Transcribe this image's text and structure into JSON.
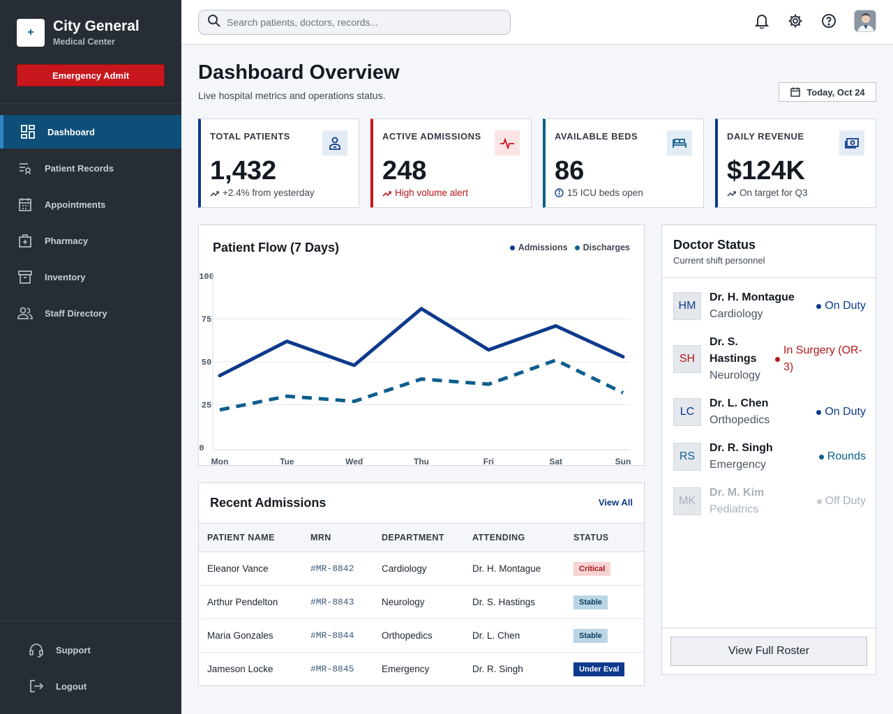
{
  "brand": {
    "name": "City General",
    "sub": "Medical Center",
    "logo_glyph": "+"
  },
  "sidebar": {
    "emergency_label": "Emergency Admit",
    "items": [
      {
        "label": "Dashboard",
        "icon": "dashboard-icon",
        "active": true
      },
      {
        "label": "Patient Records",
        "icon": "records-icon"
      },
      {
        "label": "Appointments",
        "icon": "calendar-icon"
      },
      {
        "label": "Pharmacy",
        "icon": "medical-bag-icon"
      },
      {
        "label": "Inventory",
        "icon": "archive-icon"
      },
      {
        "label": "Staff Directory",
        "icon": "staff-icon"
      }
    ],
    "bottom": [
      {
        "label": "Support",
        "icon": "headset-icon"
      },
      {
        "label": "Logout",
        "icon": "logout-icon"
      }
    ]
  },
  "topbar": {
    "search_placeholder": "Search patients, doctors, records...",
    "search_value": ""
  },
  "header": {
    "title": "Dashboard Overview",
    "subtitle": "Live hospital metrics and operations status.",
    "date_label": "Today, Oct 24"
  },
  "kpis": [
    {
      "label": "TOTAL PATIENTS",
      "value": "1,432",
      "note": "+2.4% from yesterday",
      "icon": "patient-icon"
    },
    {
      "label": "ACTIVE ADMISSIONS",
      "value": "248",
      "note": "High volume alert",
      "icon": "pulse-icon"
    },
    {
      "label": "AVAILABLE BEDS",
      "value": "86",
      "note": "15 ICU beds open",
      "icon": "bed-icon"
    },
    {
      "label": "DAILY REVENUE",
      "value": "$124K",
      "note": "On target for Q3",
      "icon": "cash-icon"
    }
  ],
  "chart_data": {
    "type": "line",
    "title": "Patient Flow (7 Days)",
    "categories": [
      "Mon",
      "Tue",
      "Wed",
      "Thu",
      "Fri",
      "Sat",
      "Sun"
    ],
    "series": [
      {
        "name": "Admissions",
        "values": [
          42,
          62,
          48,
          81,
          57,
          71,
          53
        ],
        "color": "#0d3a8c",
        "style": "solid"
      },
      {
        "name": "Discharges",
        "values": [
          22,
          30,
          27,
          40,
          37,
          51,
          32
        ],
        "color": "#0d5e8c",
        "style": "dashed"
      }
    ],
    "yticks": [
      "0",
      "25",
      "50",
      "75",
      "100"
    ],
    "ylim": [
      0,
      100
    ],
    "grid": true,
    "legend": "top-right"
  },
  "admissions": {
    "title": "Recent Admissions",
    "view_all": "View All",
    "columns": [
      "PATIENT NAME",
      "MRN",
      "DEPARTMENT",
      "ATTENDING",
      "STATUS"
    ],
    "rows": [
      {
        "name": "Eleanor Vance",
        "mrn": "#MR-8842",
        "dept": "Cardiology",
        "attending": "Dr. H. Montague",
        "status": "Critical",
        "kind": "critical"
      },
      {
        "name": "Arthur Pendelton",
        "mrn": "#MR-8843",
        "dept": "Neurology",
        "attending": "Dr. S. Hastings",
        "status": "Stable",
        "kind": "stable"
      },
      {
        "name": "Maria Gonzales",
        "mrn": "#MR-8844",
        "dept": "Orthopedics",
        "attending": "Dr. L. Chen",
        "status": "Stable",
        "kind": "stable"
      },
      {
        "name": "Jameson Locke",
        "mrn": "#MR-8845",
        "dept": "Emergency",
        "attending": "Dr. R. Singh",
        "status": "Under Eval",
        "kind": "under"
      }
    ]
  },
  "doctors": {
    "title": "Doctor Status",
    "subtitle": "Current shift personnel",
    "roster_label": "View Full Roster",
    "list": [
      {
        "initials": "HM",
        "name": "Dr. H. Montague",
        "specialty": "Cardiology",
        "status": "On Duty",
        "color": "#0d3a8c"
      },
      {
        "initials": "SH",
        "name": "Dr. S. Hastings",
        "specialty": "Neurology",
        "status": "In Surgery (OR-3)",
        "color": "#b3151b"
      },
      {
        "initials": "LC",
        "name": "Dr. L. Chen",
        "specialty": "Orthopedics",
        "status": "On Duty",
        "color": "#0d3a8c"
      },
      {
        "initials": "RS",
        "name": "Dr. R. Singh",
        "specialty": "Emergency",
        "status": "Rounds",
        "color": "#0d5e8c"
      },
      {
        "initials": "MK",
        "name": "Dr. M. Kim",
        "specialty": "Pediatrics",
        "status": "Off Duty",
        "color": "#c2c8cf"
      }
    ]
  }
}
